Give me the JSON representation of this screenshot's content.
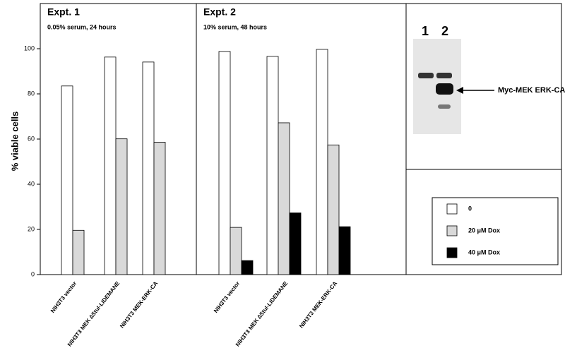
{
  "chart_data": [
    {
      "type": "bar",
      "title": "Expt. 1",
      "subtitle": "0.05% serum, 24 hours",
      "ylabel": "% viable cells",
      "categories": [
        "NIH3T3 vector",
        "NIH3T3 MEK ∆Stul-LIDEMANE",
        "NIH3T3 MEK-ERK-CA"
      ],
      "series": [
        {
          "name": "0",
          "color": "#ffffff",
          "values": [
            83.5,
            96.3,
            94.1
          ]
        },
        {
          "name": "20 μM Dox",
          "color": "#d9d9d9",
          "values": [
            19.6,
            60.1,
            58.6
          ]
        }
      ],
      "ylim": [
        0,
        120
      ],
      "yticks": [
        0,
        20,
        40,
        60,
        80,
        100
      ]
    },
    {
      "type": "bar",
      "title": "Expt. 2",
      "subtitle": "10% serum, 48 hours",
      "categories": [
        "NIH3T3 vector",
        "NIH3T3 MEK ∆Stul-LIDEMANE",
        "NIH3T3 MEK-ERK-CA"
      ],
      "series": [
        {
          "name": "0",
          "color": "#ffffff",
          "values": [
            98.8,
            96.6,
            99.7
          ]
        },
        {
          "name": "20 μM Dox",
          "color": "#d9d9d9",
          "values": [
            20.9,
            67.2,
            57.4
          ]
        },
        {
          "name": "40 μM Dox",
          "color": "#000000",
          "values": [
            6.2,
            27.3,
            21.2
          ]
        }
      ],
      "ylim": [
        0,
        120
      ],
      "legend": "right"
    }
  ],
  "inset": {
    "lanes": [
      "1",
      "2"
    ],
    "label": "Myc-MEK ERK-CA"
  }
}
